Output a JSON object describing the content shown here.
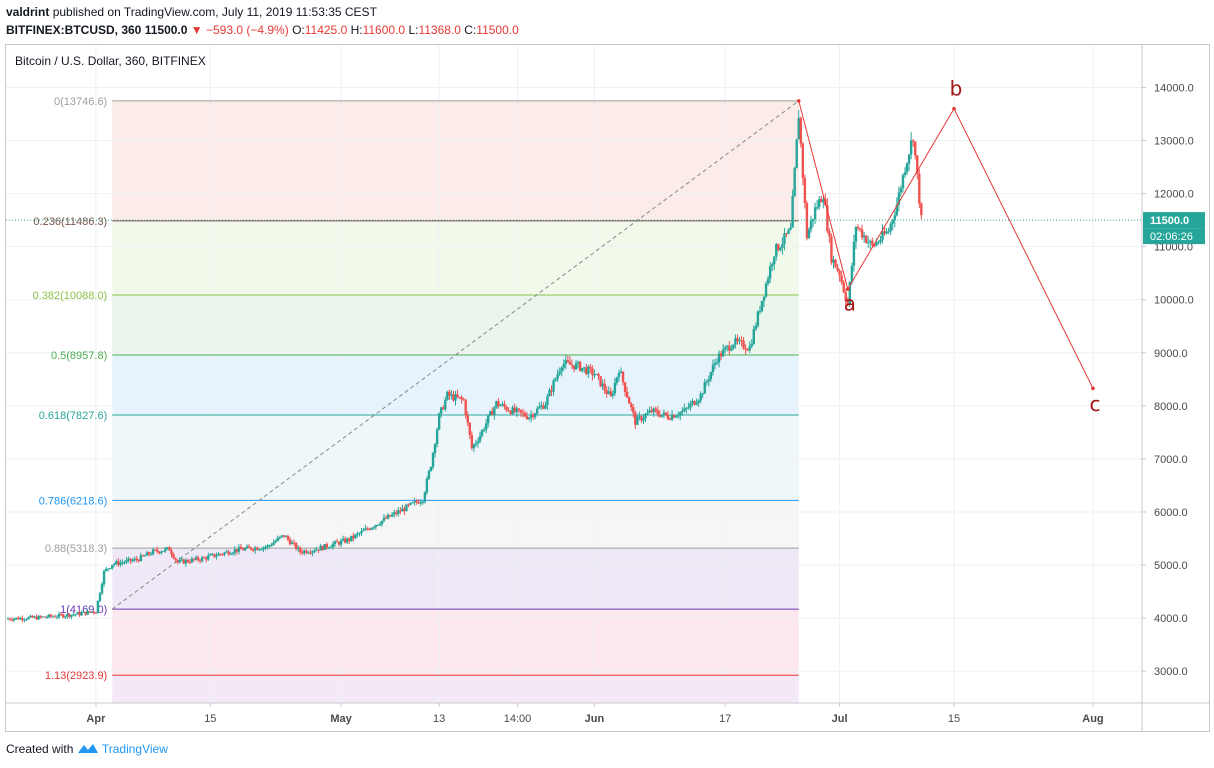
{
  "header": {
    "author": "valdrint",
    "published_text": "published on TradingView.com, July 11, 2019 11:53:35 CEST",
    "symbol": "BITFINEX:BTCUSD, 360",
    "last": "11500.0",
    "change_arrow": "▼",
    "change": "−593.0 (−4.9%)",
    "o_label": "O:",
    "o": "11425.0",
    "h_label": "H:",
    "h": "11600.0",
    "l_label": "L:",
    "l": "11368.0",
    "c_label": "C:",
    "c": "11500.0"
  },
  "footer": {
    "created_with": "Created with",
    "brand": "TradingView"
  },
  "colors": {
    "up": "#26a69a",
    "down": "#ef5350",
    "wave": "#e53935",
    "label_dark_red": "#a31515",
    "price_tag": "#26a69a"
  },
  "chart_data": {
    "type": "candlestick",
    "title": "Bitcoin / U.S. Dollar, 360, BITFINEX",
    "y_axis": {
      "ticks": [
        "3000.0",
        "4000.0",
        "5000.0",
        "6000.0",
        "7000.0",
        "8000.0",
        "9000.0",
        "10000.0",
        "11000.0",
        "12000.0",
        "13000.0",
        "14000.0"
      ],
      "ylim": [
        2400,
        14800
      ]
    },
    "x_axis": {
      "ticks": [
        {
          "label": "Apr",
          "date": "2019-04-01",
          "bold": true
        },
        {
          "label": "15",
          "date": "2019-04-15",
          "bold": false
        },
        {
          "label": "May",
          "date": "2019-05-01",
          "bold": true
        },
        {
          "label": "13",
          "date": "2019-05-13",
          "bold": false
        },
        {
          "label": "14:00",
          "date": "2019-05-22T14:00",
          "bold": false
        },
        {
          "label": "Jun",
          "date": "2019-06-01",
          "bold": true
        },
        {
          "label": "17",
          "date": "2019-06-17",
          "bold": false
        },
        {
          "label": "Jul",
          "date": "2019-07-01",
          "bold": true
        },
        {
          "label": "15",
          "date": "2019-07-15",
          "bold": false
        },
        {
          "label": "Aug",
          "date": "2019-08-01",
          "bold": true
        }
      ],
      "xlim": [
        "2019-03-21",
        "2019-08-07"
      ]
    },
    "last_price": {
      "label": "11500.0",
      "value": 11500
    },
    "countdown": "02:06:26",
    "fibonacci": {
      "start": {
        "date": "2019-04-03",
        "value": 4169
      },
      "end": {
        "date": "2019-06-26",
        "value": 13746.6
      },
      "levels": [
        {
          "label": "0(13746.6)",
          "value": 13746.6,
          "color": "#9e9e9e",
          "fill": "#fbe9e7"
        },
        {
          "label": "0.236(11486.3)",
          "value": 11486.3,
          "color": "#795548",
          "fill": "#f1f8e9"
        },
        {
          "label": "0.382(10088.0)",
          "value": 10088.0,
          "color": "#8bc34a",
          "fill": "#e8f5e9"
        },
        {
          "label": "0.5(8957.8)",
          "value": 8957.8,
          "color": "#4caf50",
          "fill": "#e3f2fd"
        },
        {
          "label": "0.618(7827.6)",
          "value": 7827.6,
          "color": "#26a69a",
          "fill": "#eef6fb"
        },
        {
          "label": "0.786(6218.6)",
          "value": 6218.6,
          "color": "#2196f3",
          "fill": "#f5f5f5"
        },
        {
          "label": "0.88(5318.3)",
          "value": 5318.3,
          "color": "#9e9e9e",
          "fill": "#ede7f6"
        },
        {
          "label": "1(4169.0)",
          "value": 4169.0,
          "color": "#673ab7",
          "fill": "#fce4ec"
        },
        {
          "label": "1.13(2923.9)",
          "value": 2923.9,
          "color": "#e53935",
          "fill": "#f3e5f5"
        }
      ]
    },
    "price_path": [
      [
        "2019-03-21",
        3990
      ],
      [
        "2019-03-25",
        4010
      ],
      [
        "2019-03-30",
        4080
      ],
      [
        "2019-04-01",
        4130
      ],
      [
        "2019-04-02",
        4870
      ],
      [
        "2019-04-03",
        5020
      ],
      [
        "2019-04-06",
        5100
      ],
      [
        "2019-04-08",
        5250
      ],
      [
        "2019-04-10",
        5300
      ],
      [
        "2019-04-11",
        5050
      ],
      [
        "2019-04-14",
        5120
      ],
      [
        "2019-04-18",
        5280
      ],
      [
        "2019-04-22",
        5350
      ],
      [
        "2019-04-24",
        5560
      ],
      [
        "2019-04-26",
        5250
      ],
      [
        "2019-04-28",
        5300
      ],
      [
        "2019-05-02",
        5480
      ],
      [
        "2019-05-05",
        5750
      ],
      [
        "2019-05-08",
        6000
      ],
      [
        "2019-05-11",
        6250
      ],
      [
        "2019-05-12",
        6900
      ],
      [
        "2019-05-13",
        7800
      ],
      [
        "2019-05-14",
        8200
      ],
      [
        "2019-05-16",
        8100
      ],
      [
        "2019-05-17",
        7200
      ],
      [
        "2019-05-18",
        7450
      ],
      [
        "2019-05-20",
        8050
      ],
      [
        "2019-05-22",
        7900
      ],
      [
        "2019-05-24",
        7800
      ],
      [
        "2019-05-26",
        8050
      ],
      [
        "2019-05-28",
        8800
      ],
      [
        "2019-05-30",
        8750
      ],
      [
        "2019-06-01",
        8600
      ],
      [
        "2019-06-03",
        8150
      ],
      [
        "2019-06-04",
        8700
      ],
      [
        "2019-06-06",
        7700
      ],
      [
        "2019-06-08",
        7900
      ],
      [
        "2019-06-10",
        7800
      ],
      [
        "2019-06-12",
        7900
      ],
      [
        "2019-06-14",
        8200
      ],
      [
        "2019-06-16",
        8900
      ],
      [
        "2019-06-18",
        9200
      ],
      [
        "2019-06-20",
        9100
      ],
      [
        "2019-06-22",
        10300
      ],
      [
        "2019-06-23",
        10900
      ],
      [
        "2019-06-25",
        11300
      ],
      [
        "2019-06-26",
        13500
      ],
      [
        "2019-06-27",
        11200
      ],
      [
        "2019-06-28",
        11700
      ],
      [
        "2019-06-29",
        12000
      ],
      [
        "2019-06-30",
        10800
      ],
      [
        "2019-07-01",
        10500
      ],
      [
        "2019-07-02",
        9900
      ],
      [
        "2019-07-03",
        11400
      ],
      [
        "2019-07-05",
        11000
      ],
      [
        "2019-07-07",
        11300
      ],
      [
        "2019-07-08",
        11800
      ],
      [
        "2019-07-09",
        12500
      ],
      [
        "2019-07-10",
        13100
      ],
      [
        "2019-07-11",
        11500
      ]
    ],
    "wave_path": [
      [
        "2019-06-26",
        13746.6
      ],
      [
        "2019-07-02",
        10200
      ],
      [
        "2019-07-15",
        13600
      ],
      [
        "2019-08-01",
        8330
      ]
    ],
    "wave_labels": [
      {
        "text": "a",
        "date": "2019-07-02",
        "value": 9800
      },
      {
        "text": "b",
        "date": "2019-07-15",
        "value": 13850
      },
      {
        "text": "c",
        "date": "2019-08-01",
        "value": 7900
      }
    ]
  }
}
